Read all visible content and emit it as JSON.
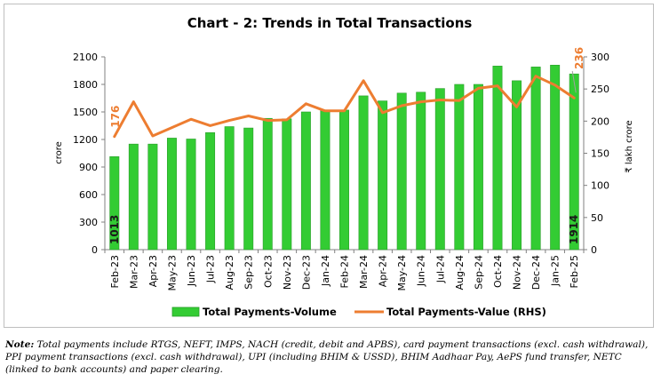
{
  "chart_data": {
    "type": "bar",
    "title": "Chart - 2: Trends in Total Transactions",
    "categories": [
      "Feb-23",
      "Mar-23",
      "Apr-23",
      "May-23",
      "Jun-23",
      "Jul-23",
      "Aug-23",
      "Sep-23",
      "Oct-23",
      "Nov-23",
      "Dec-23",
      "Jan-24",
      "Feb-24",
      "Mar-24",
      "Apr-24",
      "May-24",
      "Jun-24",
      "Jul-24",
      "Aug-24",
      "Sep-24",
      "Oct-24",
      "Nov-24",
      "Dec-24",
      "Jan-25",
      "Feb-25"
    ],
    "ylabel": "crore",
    "ylabel_right": "₹ lakh crore",
    "ylim": [
      0,
      2100
    ],
    "y_ticks": [
      "0",
      "300",
      "600",
      "900",
      "1200",
      "1500",
      "1800",
      "2100"
    ],
    "ylim_right": [
      0,
      300
    ],
    "y_ticks_right": [
      "0",
      "50",
      "100",
      "150",
      "200",
      "250",
      "300"
    ],
    "series": [
      {
        "name": "Total Payments-Volume",
        "type": "bar",
        "axis": "left",
        "color": "#33cc33",
        "values": [
          1013,
          1150,
          1150,
          1215,
          1205,
          1275,
          1340,
          1325,
          1430,
          1425,
          1500,
          1520,
          1520,
          1675,
          1620,
          1705,
          1715,
          1755,
          1800,
          1800,
          2000,
          1840,
          1990,
          2010,
          1914
        ]
      },
      {
        "name": "Total Payments-Value (RHS)",
        "type": "line",
        "axis": "right",
        "color": "#ed7d31",
        "values": [
          176,
          230,
          177,
          190,
          203,
          193,
          201,
          208,
          201,
          202,
          227,
          216,
          216,
          263,
          213,
          224,
          230,
          233,
          232,
          251,
          255,
          222,
          270,
          256,
          236
        ]
      }
    ],
    "data_labels": {
      "bar_first": "1013",
      "bar_last": "1914",
      "line_first": "176",
      "line_last": "236"
    },
    "legend": "bottom",
    "grid": false
  },
  "note": {
    "label": "Note:",
    "text": " Total payments include RTGS, NEFT, IMPS, NACH (credit, debit and APBS), card payment transactions (excl. cash withdrawal), PPI payment transactions (excl. cash withdrawal), UPI (including BHIM & USSD), BHIM Aadhaar Pay, AePS fund transfer, NETC (linked to bank accounts) and paper clearing."
  }
}
